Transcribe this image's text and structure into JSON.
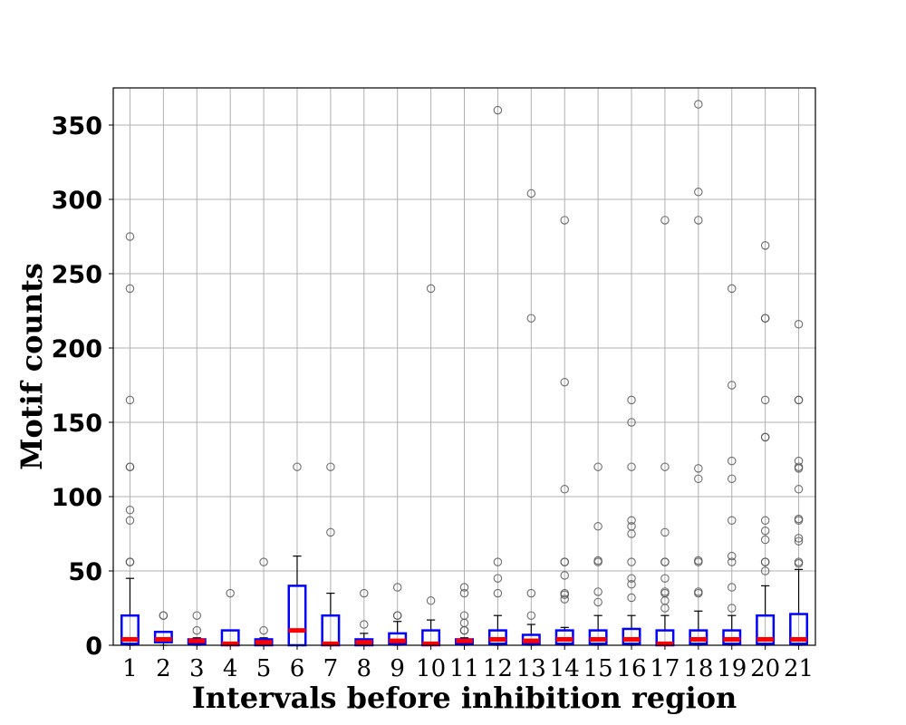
{
  "chart_data": {
    "type": "box",
    "title": "",
    "xlabel": "Intervals before inhibition region",
    "ylabel": "Motif counts",
    "categories": [
      "1",
      "2",
      "3",
      "4",
      "5",
      "6",
      "7",
      "8",
      "9",
      "10",
      "11",
      "12",
      "13",
      "14",
      "15",
      "16",
      "17",
      "18",
      "19",
      "20",
      "21"
    ],
    "ylim": [
      0,
      375
    ],
    "yticks": [
      0,
      50,
      100,
      150,
      200,
      250,
      300,
      350
    ],
    "grid": true,
    "colors": {
      "box": "#0000ff",
      "median": "#ff0000",
      "whisker": "#000000",
      "outlier": "#555555",
      "grid": "#b0b0b0"
    },
    "boxes": [
      {
        "label": "1",
        "q1": 1,
        "median": 4,
        "q3": 20,
        "whislo": 0,
        "whishi": 45,
        "fliers": [
          56,
          56,
          84,
          91,
          120,
          120,
          165,
          240,
          275
        ]
      },
      {
        "label": "2",
        "q1": 2,
        "median": 4,
        "q3": 9,
        "whislo": 0,
        "whishi": 9,
        "fliers": [
          20,
          20
        ]
      },
      {
        "label": "3",
        "q1": 1,
        "median": 3,
        "q3": 4,
        "whislo": 0,
        "whishi": 5,
        "fliers": [
          10,
          20
        ]
      },
      {
        "label": "4",
        "q1": 0,
        "median": 1,
        "q3": 10,
        "whislo": 0,
        "whishi": 10,
        "fliers": [
          35
        ]
      },
      {
        "label": "5",
        "q1": 0,
        "median": 2,
        "q3": 4,
        "whislo": 0,
        "whishi": 5,
        "fliers": [
          10,
          56
        ]
      },
      {
        "label": "6",
        "q1": 0,
        "median": 10,
        "q3": 40,
        "whislo": 0,
        "whishi": 60,
        "fliers": [
          120
        ]
      },
      {
        "label": "7",
        "q1": 0,
        "median": 1,
        "q3": 20,
        "whislo": 0,
        "whishi": 35,
        "fliers": [
          76,
          120
        ]
      },
      {
        "label": "8",
        "q1": 0,
        "median": 2,
        "q3": 4,
        "whislo": 0,
        "whishi": 8,
        "fliers": [
          14,
          35
        ]
      },
      {
        "label": "9",
        "q1": 1,
        "median": 3,
        "q3": 8,
        "whislo": 0,
        "whishi": 16,
        "fliers": [
          20,
          20,
          39
        ]
      },
      {
        "label": "10",
        "q1": 0,
        "median": 1,
        "q3": 10,
        "whislo": 0,
        "whishi": 17,
        "fliers": [
          30,
          240
        ]
      },
      {
        "label": "11",
        "q1": 1,
        "median": 3,
        "q3": 4,
        "whislo": 0,
        "whishi": 5,
        "fliers": [
          10,
          10,
          15,
          20,
          35,
          39
        ]
      },
      {
        "label": "12",
        "q1": 1,
        "median": 4,
        "q3": 10,
        "whislo": 0,
        "whishi": 20,
        "fliers": [
          35,
          45,
          56,
          360
        ]
      },
      {
        "label": "13",
        "q1": 1,
        "median": 3,
        "q3": 7,
        "whislo": 0,
        "whishi": 14,
        "fliers": [
          20,
          35,
          220,
          304
        ]
      },
      {
        "label": "14",
        "q1": 1,
        "median": 4,
        "q3": 10,
        "whislo": 0,
        "whishi": 12,
        "fliers": [
          31,
          34,
          35,
          47,
          56,
          56,
          105,
          177,
          286
        ]
      },
      {
        "label": "15",
        "q1": 1,
        "median": 4,
        "q3": 10,
        "whislo": 0,
        "whishi": 20,
        "fliers": [
          29,
          36,
          56,
          57,
          80,
          120
        ]
      },
      {
        "label": "16",
        "q1": 1,
        "median": 4,
        "q3": 11,
        "whislo": 0,
        "whishi": 20,
        "fliers": [
          32,
          41,
          45,
          56,
          75,
          80,
          84,
          120,
          150,
          165
        ]
      },
      {
        "label": "17",
        "q1": 0,
        "median": 1,
        "q3": 10,
        "whislo": 0,
        "whishi": 20,
        "fliers": [
          25,
          30,
          35,
          36,
          45,
          56,
          56,
          76,
          120,
          286
        ]
      },
      {
        "label": "18",
        "q1": 1,
        "median": 4,
        "q3": 10,
        "whislo": 0,
        "whishi": 23,
        "fliers": [
          35,
          36,
          56,
          57,
          112,
          119,
          286,
          305,
          364
        ]
      },
      {
        "label": "19",
        "q1": 1,
        "median": 4,
        "q3": 10,
        "whislo": 0,
        "whishi": 20,
        "fliers": [
          25,
          39,
          56,
          60,
          84,
          112,
          124,
          175,
          240
        ]
      },
      {
        "label": "20",
        "q1": 1,
        "median": 4,
        "q3": 20,
        "whislo": 0,
        "whishi": 40,
        "fliers": [
          50,
          56,
          56,
          71,
          77,
          84,
          140,
          140,
          165,
          220,
          220,
          269
        ]
      },
      {
        "label": "21",
        "q1": 1,
        "median": 4,
        "q3": 21,
        "whislo": 0,
        "whishi": 51,
        "fliers": [
          55,
          56,
          70,
          72,
          84,
          85,
          105,
          119,
          120,
          124,
          165,
          165,
          216
        ]
      }
    ]
  }
}
